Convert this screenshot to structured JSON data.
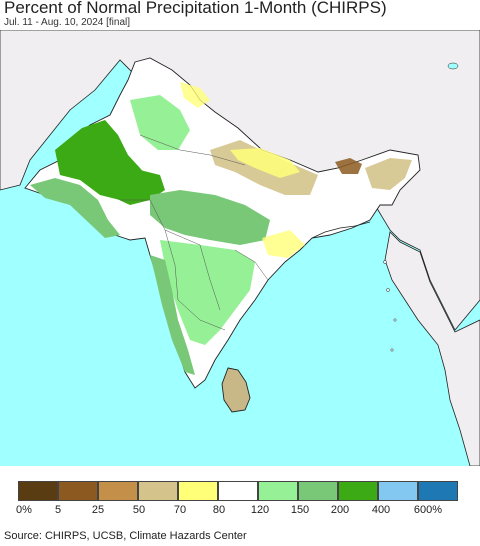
{
  "title": "Percent of Normal Precipitation 1-Month (CHIRPS)",
  "subtitle": "Jul. 11 - Aug. 10, 2024 [final]",
  "legend": {
    "colors": [
      "#5a3c13",
      "#8c5a21",
      "#c49049",
      "#d4c48c",
      "#ffff78",
      "#ffffff",
      "#96f096",
      "#78c878",
      "#3caa14",
      "#82c8f0",
      "#1e78b4"
    ],
    "ticks": [
      "0%",
      "5",
      "25",
      "50",
      "70",
      "80",
      "120",
      "150",
      "200",
      "400",
      "600%"
    ]
  },
  "source": "Source: CHIRPS, UCSB, Climate Hazards Center",
  "colors": {
    "ocean": "#a0ffff",
    "outside_land": "#f0eef0"
  }
}
